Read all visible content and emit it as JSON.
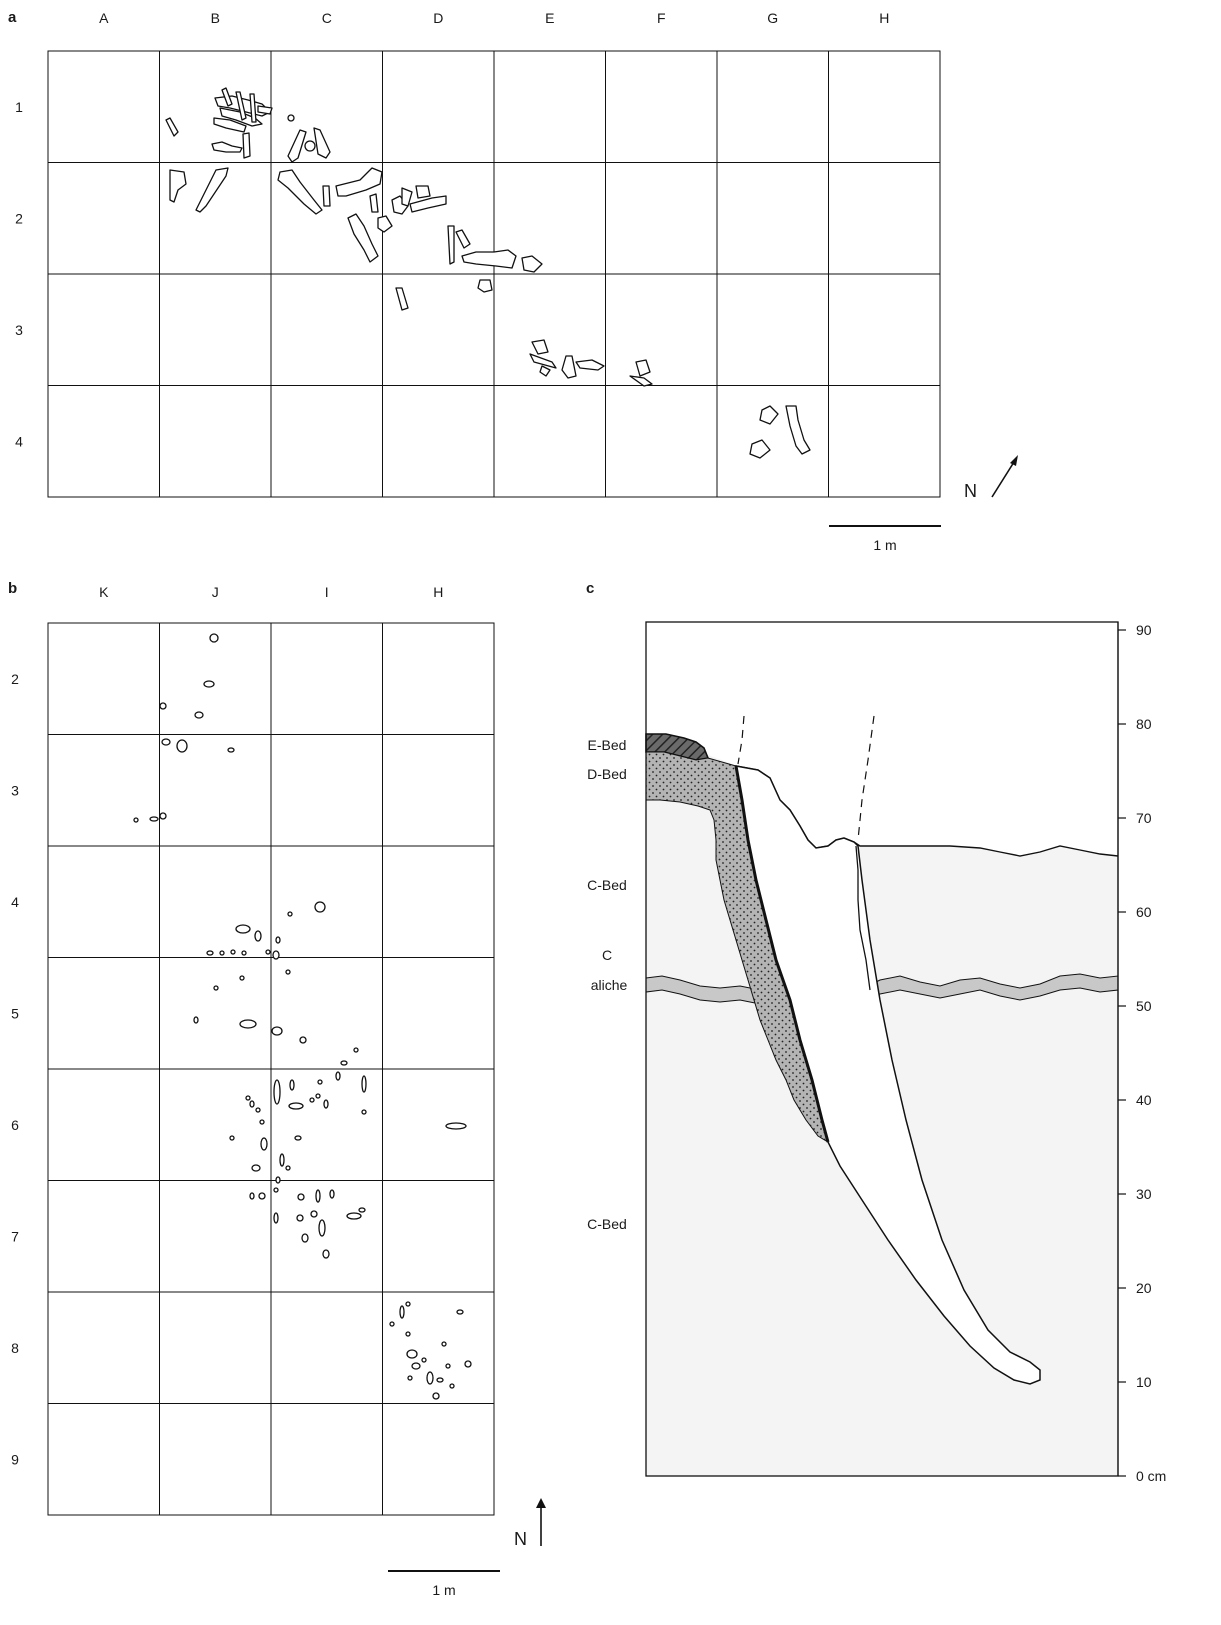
{
  "panel_a": {
    "label": "a",
    "columns": [
      "A",
      "B",
      "C",
      "D",
      "E",
      "F",
      "G",
      "H"
    ],
    "rows": [
      "1",
      "2",
      "3",
      "4"
    ],
    "north_label": "N",
    "scale_label": "1 m"
  },
  "panel_b": {
    "label": "b",
    "columns": [
      "K",
      "J",
      "I",
      "H"
    ],
    "rows": [
      "2",
      "3",
      "4",
      "5",
      "6",
      "7",
      "8",
      "9"
    ],
    "north_label": "N",
    "scale_label": "1 m"
  },
  "panel_c": {
    "label": "c",
    "beds": {
      "e_bed": "E-Bed",
      "d_bed": "D-Bed",
      "c_bed_upper": "C-Bed",
      "caliche_line1": "C",
      "caliche_line2": "aliche",
      "c_bed_lower": "C-Bed"
    },
    "depth_scale": [
      "90",
      "80",
      "70",
      "60",
      "50",
      "40",
      "30",
      "20",
      "10",
      "0 cm"
    ],
    "colors": {
      "c_bed_fill": "#f4f4f4",
      "d_bed_fill": "#b8b8b8",
      "e_bed_fill": "#555555",
      "caliche_fill": "#c8c8c8"
    }
  }
}
